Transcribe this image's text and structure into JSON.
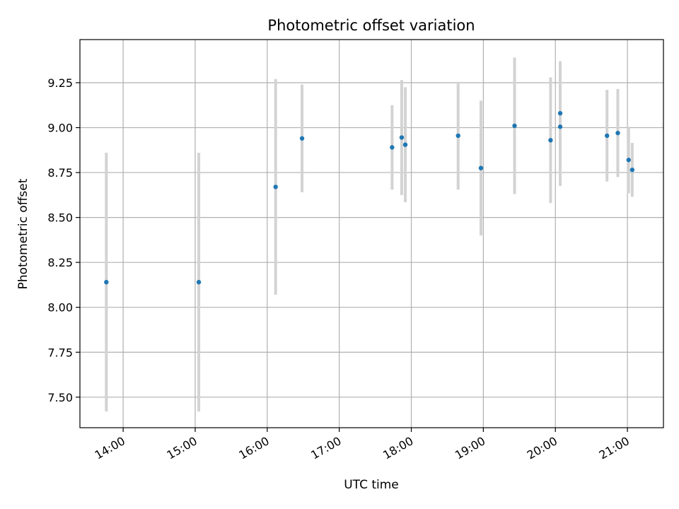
{
  "chart_data": {
    "type": "scatter",
    "title": "Photometric offset variation",
    "xlabel": "UTC time",
    "ylabel": "Photometric offset",
    "x_is_time": true,
    "xlim": [
      "13:24",
      "21:30"
    ],
    "ylim": [
      7.33,
      9.49
    ],
    "x_ticks": [
      "14:00",
      "15:00",
      "16:00",
      "17:00",
      "18:00",
      "19:00",
      "20:00",
      "21:00"
    ],
    "y_ticks": [
      7.5,
      7.75,
      8.0,
      8.25,
      8.5,
      8.75,
      9.0,
      9.25
    ],
    "grid": true,
    "colors": {
      "point": "#1f77b4",
      "errorbar": "#d3d3d3",
      "grid": "#b0b0b0",
      "axes": "#000000"
    },
    "points": [
      {
        "x": "13:46",
        "y": 8.14,
        "yerr": 0.72
      },
      {
        "x": "15:03",
        "y": 8.14,
        "yerr": 0.72
      },
      {
        "x": "16:07",
        "y": 8.67,
        "yerr": 0.6
      },
      {
        "x": "16:29",
        "y": 8.94,
        "yerr": 0.3
      },
      {
        "x": "17:44",
        "y": 8.89,
        "yerr": 0.235
      },
      {
        "x": "17:52",
        "y": 8.945,
        "yerr": 0.32
      },
      {
        "x": "17:55",
        "y": 8.905,
        "yerr": 0.32
      },
      {
        "x": "18:39",
        "y": 8.955,
        "yerr": 0.3
      },
      {
        "x": "18:58",
        "y": 8.775,
        "yerr": 0.375
      },
      {
        "x": "19:26",
        "y": 9.01,
        "yerr": 0.38
      },
      {
        "x": "19:56",
        "y": 8.93,
        "yerr": 0.35
      },
      {
        "x": "20:04",
        "y": 9.08,
        "yerr": 0.29
      },
      {
        "x": "20:04",
        "y": 9.005,
        "yerr": 0.33
      },
      {
        "x": "20:43",
        "y": 8.955,
        "yerr": 0.255
      },
      {
        "x": "20:52",
        "y": 8.97,
        "yerr": 0.245
      },
      {
        "x": "21:01",
        "y": 8.82,
        "yerr": 0.185
      },
      {
        "x": "21:04",
        "y": 8.765,
        "yerr": 0.15
      }
    ]
  }
}
